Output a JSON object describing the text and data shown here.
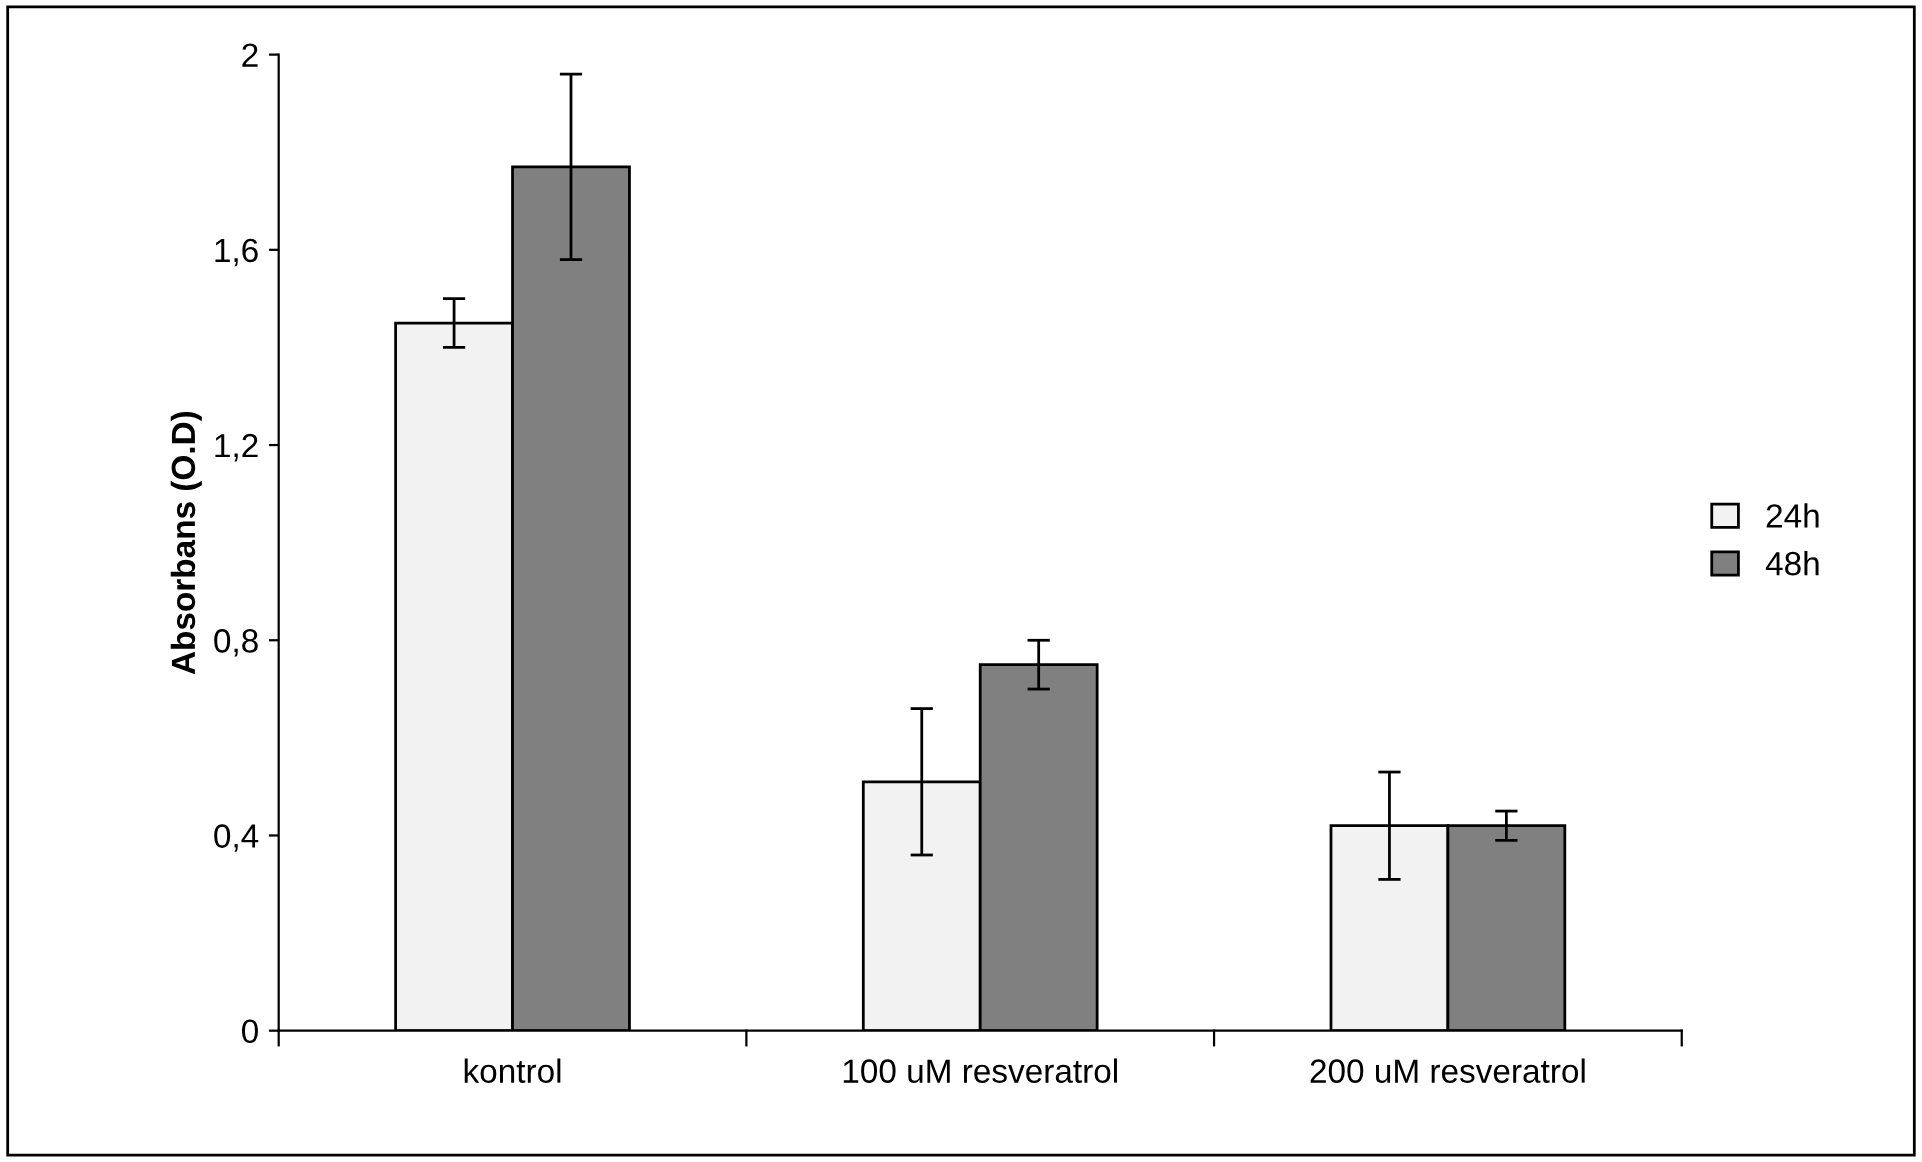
{
  "chart_data": {
    "type": "bar",
    "ylabel": "Absorbans (O.D)",
    "categories": [
      "kontrol",
      "100 uM resveratrol",
      "200 uM resveratrol"
    ],
    "series": [
      {
        "name": "24h",
        "color": "#f2f2f2",
        "values": [
          1.45,
          0.51,
          0.42
        ],
        "errors": [
          0.05,
          0.15,
          0.11
        ]
      },
      {
        "name": "48h",
        "color": "#808080",
        "values": [
          1.77,
          0.75,
          0.42
        ],
        "errors": [
          0.19,
          0.05,
          0.03
        ]
      }
    ],
    "ylim": [
      0,
      2
    ],
    "yticks": [
      0,
      {
        "value": 0.4,
        "label": "0,4"
      },
      {
        "value": 0.8,
        "label": "0,8"
      },
      {
        "value": 1.2,
        "label": "1,2"
      },
      {
        "value": 1.6,
        "label": "1,6"
      },
      2
    ],
    "legend": "right",
    "grid": false
  }
}
